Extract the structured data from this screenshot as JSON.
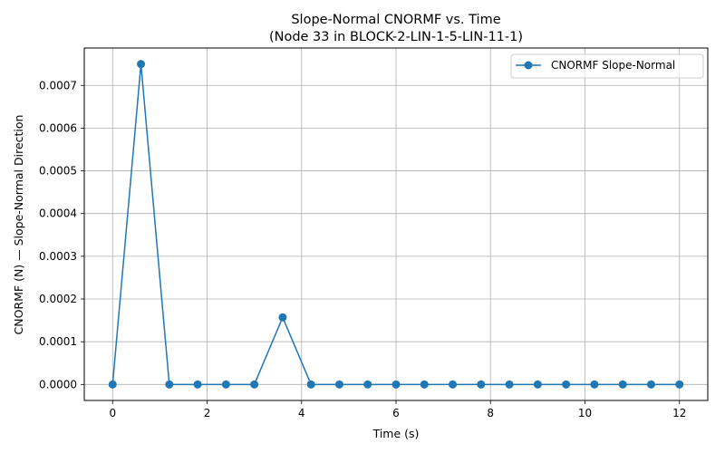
{
  "chart_data": {
    "type": "line",
    "title": "Slope-Normal CNORMF vs. Time",
    "subtitle": "(Node 33 in BLOCK-2-LIN-1-5-LIN-11-1)",
    "xlabel": "Time (s)",
    "ylabel": "CNORMF (N) — Slope-Normal Direction",
    "xlim": [
      -0.6,
      12.6
    ],
    "ylim": [
      -3.75e-05,
      0.0007875
    ],
    "x_ticks": [
      0,
      2,
      4,
      6,
      8,
      10,
      12
    ],
    "x_tick_labels": [
      "0",
      "2",
      "4",
      "6",
      "8",
      "10",
      "12"
    ],
    "y_ticks": [
      0,
      0.0001,
      0.0002,
      0.0003,
      0.0004,
      0.0005,
      0.0006,
      0.0007
    ],
    "y_tick_labels": [
      "0.0000",
      "0.0001",
      "0.0002",
      "0.0003",
      "0.0004",
      "0.0005",
      "0.0006",
      "0.0007"
    ],
    "grid": true,
    "legend_position": "top-right",
    "series": [
      {
        "name": "CNORMF Slope-Normal",
        "color": "#1f77b4",
        "marker": "circle",
        "x": [
          0,
          0.6,
          1.2,
          1.8,
          2.4,
          3.0,
          3.6,
          4.2,
          4.8,
          5.4,
          6.0,
          6.6,
          7.2,
          7.8,
          8.4,
          9.0,
          9.6,
          10.2,
          10.8,
          11.4,
          12.0
        ],
        "y": [
          0,
          0.00075,
          0,
          0,
          0,
          0,
          0.000157,
          0,
          0,
          0,
          0,
          0,
          0,
          0,
          0,
          0,
          0,
          0,
          0,
          0,
          0
        ]
      }
    ]
  }
}
